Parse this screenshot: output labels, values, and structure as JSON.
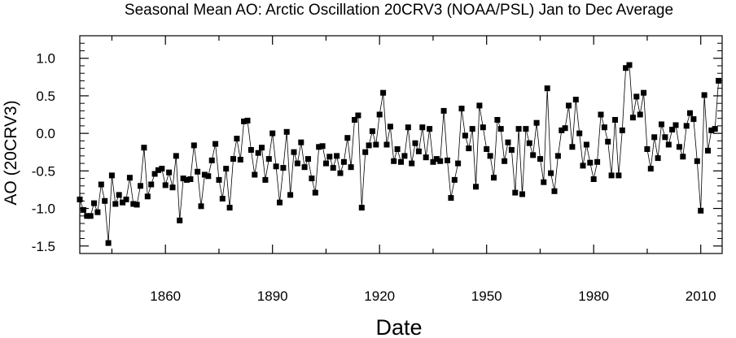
{
  "chart_data": {
    "type": "line",
    "title": "Seasonal Mean AO: Arctic Oscillation 20CRV3 (NOAA/PSL) Jan to Dec Average",
    "xlabel": "Date",
    "ylabel": "AO (20CRV3)",
    "xlim": [
      1836,
      2016
    ],
    "ylim": [
      -1.6,
      1.3
    ],
    "xticks": [
      1860,
      1890,
      1920,
      1950,
      1980,
      2010
    ],
    "yticks": [
      -1.5,
      -1.0,
      -0.5,
      0.0,
      0.5,
      1.0
    ],
    "ytick_labels": [
      "-1.5",
      "-1.0",
      "-0.5",
      "0.0",
      "0.5",
      "1.0"
    ],
    "grid": false,
    "marker": "square",
    "series": [
      {
        "x": [
          1836,
          1837,
          1838,
          1839,
          1840,
          1841,
          1842,
          1843,
          1844,
          1845,
          1846,
          1847,
          1848,
          1849,
          1850,
          1851,
          1852,
          1853,
          1854,
          1855,
          1856,
          1857,
          1858,
          1859,
          1860,
          1861,
          1862,
          1863,
          1864,
          1865,
          1866,
          1867,
          1868,
          1869,
          1870,
          1871,
          1872,
          1873,
          1874,
          1875,
          1876,
          1877,
          1878,
          1879,
          1880,
          1881,
          1882,
          1883,
          1884,
          1885,
          1886,
          1887,
          1888,
          1889,
          1890,
          1891,
          1892,
          1893,
          1894,
          1895,
          1896,
          1897,
          1898,
          1899,
          1900,
          1901,
          1902,
          1903,
          1904,
          1905,
          1906,
          1907,
          1908,
          1909,
          1910,
          1911,
          1912,
          1913,
          1914,
          1915,
          1916,
          1917,
          1918,
          1919,
          1920,
          1921,
          1922,
          1923,
          1924,
          1925,
          1926,
          1927,
          1928,
          1929,
          1930,
          1931,
          1932,
          1933,
          1934,
          1935,
          1936,
          1937,
          1938,
          1939,
          1940,
          1941,
          1942,
          1943,
          1944,
          1945,
          1946,
          1947,
          1948,
          1949,
          1950,
          1951,
          1952,
          1953,
          1954,
          1955,
          1956,
          1957,
          1958,
          1959,
          1960,
          1961,
          1962,
          1963,
          1964,
          1965,
          1966,
          1967,
          1968,
          1969,
          1970,
          1971,
          1972,
          1973,
          1974,
          1975,
          1976,
          1977,
          1978,
          1979,
          1980,
          1981,
          1982,
          1983,
          1984,
          1985,
          1986,
          1987,
          1988,
          1989,
          1990,
          1991,
          1992,
          1993,
          1994,
          1995,
          1996,
          1997,
          1998,
          1999,
          2000,
          2001,
          2002,
          2003,
          2004,
          2005,
          2006,
          2007,
          2008,
          2009,
          2010,
          2011,
          2012,
          2013,
          2014,
          2015
        ],
        "values": [
          -0.88,
          -1.02,
          -1.1,
          -1.1,
          -0.93,
          -1.05,
          -0.68,
          -0.9,
          -1.46,
          -0.56,
          -0.94,
          -0.82,
          -0.92,
          -0.88,
          -0.59,
          -0.94,
          -0.95,
          -0.7,
          -0.19,
          -0.84,
          -0.68,
          -0.54,
          -0.49,
          -0.47,
          -0.69,
          -0.52,
          -0.72,
          -0.3,
          -1.16,
          -0.6,
          -0.62,
          -0.61,
          -0.16,
          -0.51,
          -0.97,
          -0.55,
          -0.57,
          -0.36,
          -0.14,
          -0.62,
          -0.87,
          -0.47,
          -0.99,
          -0.34,
          -0.07,
          -0.35,
          0.16,
          0.17,
          -0.22,
          -0.55,
          -0.26,
          -0.19,
          -0.62,
          -0.34,
          0.0,
          -0.44,
          -0.92,
          -0.46,
          0.02,
          -0.82,
          -0.25,
          -0.4,
          -0.12,
          -0.45,
          -0.34,
          -0.6,
          -0.79,
          -0.18,
          -0.17,
          -0.4,
          -0.31,
          -0.46,
          -0.3,
          -0.53,
          -0.38,
          -0.06,
          -0.45,
          0.18,
          0.24,
          -0.99,
          -0.25,
          -0.16,
          0.03,
          -0.15,
          0.25,
          0.54,
          -0.15,
          0.09,
          -0.37,
          -0.21,
          -0.38,
          -0.3,
          0.08,
          -0.4,
          -0.13,
          -0.24,
          0.08,
          -0.32,
          0.06,
          -0.38,
          -0.34,
          -0.37,
          0.3,
          -0.36,
          -0.86,
          -0.62,
          -0.4,
          0.33,
          -0.03,
          -0.2,
          0.06,
          -0.71,
          0.37,
          0.08,
          -0.21,
          -0.3,
          -0.59,
          0.18,
          0.06,
          -0.37,
          -0.12,
          -0.22,
          -0.79,
          0.06,
          -0.81,
          0.06,
          -0.13,
          -0.29,
          0.14,
          -0.34,
          -0.65,
          0.6,
          -0.53,
          -0.77,
          -0.3,
          0.04,
          0.07,
          0.37,
          -0.18,
          0.45,
          0.0,
          -0.43,
          -0.15,
          -0.39,
          -0.61,
          -0.38,
          0.25,
          0.08,
          -0.11,
          -0.56,
          0.18,
          -0.56,
          0.04,
          0.87,
          0.91,
          0.21,
          0.49,
          0.25,
          0.54,
          -0.21,
          -0.47,
          -0.05,
          -0.33,
          0.12,
          -0.05,
          -0.15,
          0.05,
          0.11,
          -0.18,
          -0.31,
          0.1,
          0.27,
          0.19,
          -0.37,
          -1.03,
          0.51,
          -0.23,
          0.04,
          0.06,
          0.7
        ]
      }
    ]
  }
}
